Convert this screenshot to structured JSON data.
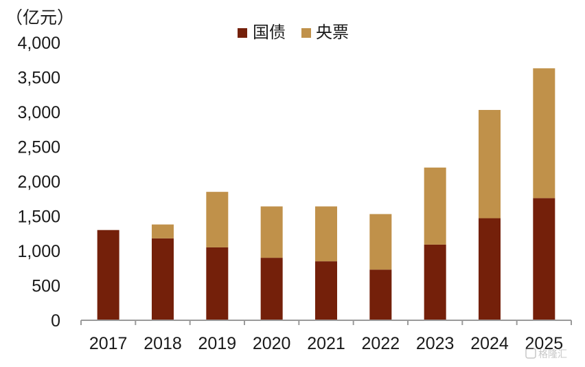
{
  "chart_data": {
    "type": "bar",
    "stacked": true,
    "unit_label": "（亿元）",
    "categories": [
      "2017",
      "2018",
      "2019",
      "2020",
      "2021",
      "2022",
      "2023",
      "2024",
      "2025"
    ],
    "series": [
      {
        "name": "国债",
        "color": "#74200a",
        "values": [
          1300,
          1180,
          1050,
          900,
          850,
          730,
          1090,
          1470,
          1760
        ]
      },
      {
        "name": "央票",
        "color": "#c0914a",
        "values": [
          0,
          200,
          800,
          740,
          790,
          800,
          1110,
          1560,
          1870
        ]
      }
    ],
    "ylim": [
      0,
      4000
    ],
    "yticks": [
      0,
      500,
      1000,
      1500,
      2000,
      2500,
      3000,
      3500,
      4000
    ],
    "ytick_labels": [
      "0",
      "500",
      "1,000",
      "1,500",
      "2,000",
      "2,500",
      "3,000",
      "3,500",
      "4,000"
    ],
    "grid": false,
    "legend_position": "top-center"
  },
  "watermark": "格隆汇"
}
